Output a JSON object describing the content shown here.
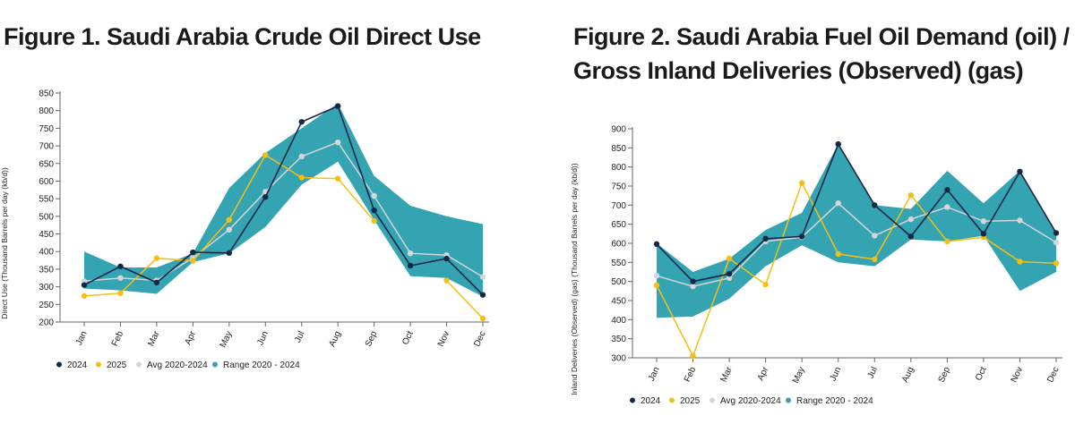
{
  "colors": {
    "s2024": "#152848",
    "s2025": "#f2bf14",
    "avg": "#d4d6d7",
    "range": "#34a3b2",
    "axis": "#666666"
  },
  "figures": [
    {
      "title": "Figure 1. Saudi Arabia Crude Oil Direct Use"
    },
    {
      "title": "Figure 2. Saudi Arabia Fuel Oil Demand (oil) / Gross Inland Deliveries (Observed) (gas)"
    }
  ],
  "chart_data": [
    {
      "type": "line",
      "title": "Figure 1. Saudi Arabia Crude Oil Direct Use",
      "ylabel": "Direct Use (Thousand Barrels per day (kb/d))",
      "xlabel": "",
      "categories": [
        "Jan",
        "Feb",
        "Mar",
        "Apr",
        "May",
        "Jun",
        "Jul",
        "Aug",
        "Sep",
        "Oct",
        "Nov",
        "Dec"
      ],
      "ylim": [
        200,
        850
      ],
      "yticks": [
        200,
        250,
        300,
        350,
        400,
        450,
        500,
        550,
        600,
        650,
        700,
        750,
        800,
        850
      ],
      "legend_position": "bottom-left",
      "range": {
        "name": "Range 2020 - 2024",
        "low": [
          295,
          290,
          280,
          370,
          395,
          470,
          590,
          655,
          490,
          330,
          325,
          272
        ],
        "high": [
          400,
          355,
          355,
          395,
          580,
          680,
          750,
          820,
          615,
          530,
          500,
          478
        ]
      },
      "series": [
        {
          "name": "2024",
          "values": [
            305,
            358,
            312,
            398,
            396,
            555,
            768,
            813,
            517,
            360,
            380,
            277
          ]
        },
        {
          "name": "2025",
          "values": [
            274,
            282,
            381,
            374,
            490,
            674,
            610,
            607,
            487,
            null,
            318,
            210
          ]
        },
        {
          "name": "Avg 2020-2024",
          "values": [
            316,
            325,
            318,
            382,
            462,
            570,
            670,
            710,
            558,
            395,
            390,
            328
          ]
        }
      ]
    },
    {
      "type": "line",
      "title": "Figure 2. Saudi Arabia Fuel Oil Demand (oil) / Gross Inland Deliveries (Observed) (gas)",
      "ylabel": "Inland Deliveries (Observed) (gas) (Thousand Barrels per day (kb/d))",
      "xlabel": "",
      "categories": [
        "Jan",
        "Feb",
        "Mar",
        "Apr",
        "May",
        "Jun",
        "Jul",
        "Aug",
        "Sep",
        "Oct",
        "Nov",
        "Dec"
      ],
      "ylim": [
        300,
        900
      ],
      "yticks": [
        300,
        350,
        400,
        450,
        500,
        550,
        600,
        650,
        700,
        750,
        800,
        850,
        900
      ],
      "legend_position": "bottom-left",
      "range": {
        "name": "Range 2020 - 2024",
        "low": [
          405,
          408,
          455,
          540,
          595,
          550,
          540,
          610,
          605,
          620,
          475,
          525
        ],
        "high": [
          600,
          525,
          560,
          635,
          680,
          860,
          700,
          690,
          790,
          705,
          790,
          630
        ]
      },
      "series": [
        {
          "name": "2024",
          "values": [
            598,
            500,
            520,
            612,
            618,
            860,
            700,
            618,
            740,
            625,
            788,
            627
          ]
        },
        {
          "name": "2025",
          "values": [
            490,
            305,
            560,
            492,
            758,
            572,
            558,
            726,
            605,
            616,
            552,
            548
          ]
        },
        {
          "name": "Avg 2020-2024",
          "values": [
            515,
            487,
            509,
            605,
            616,
            705,
            620,
            663,
            695,
            658,
            660,
            602
          ]
        }
      ]
    }
  ]
}
